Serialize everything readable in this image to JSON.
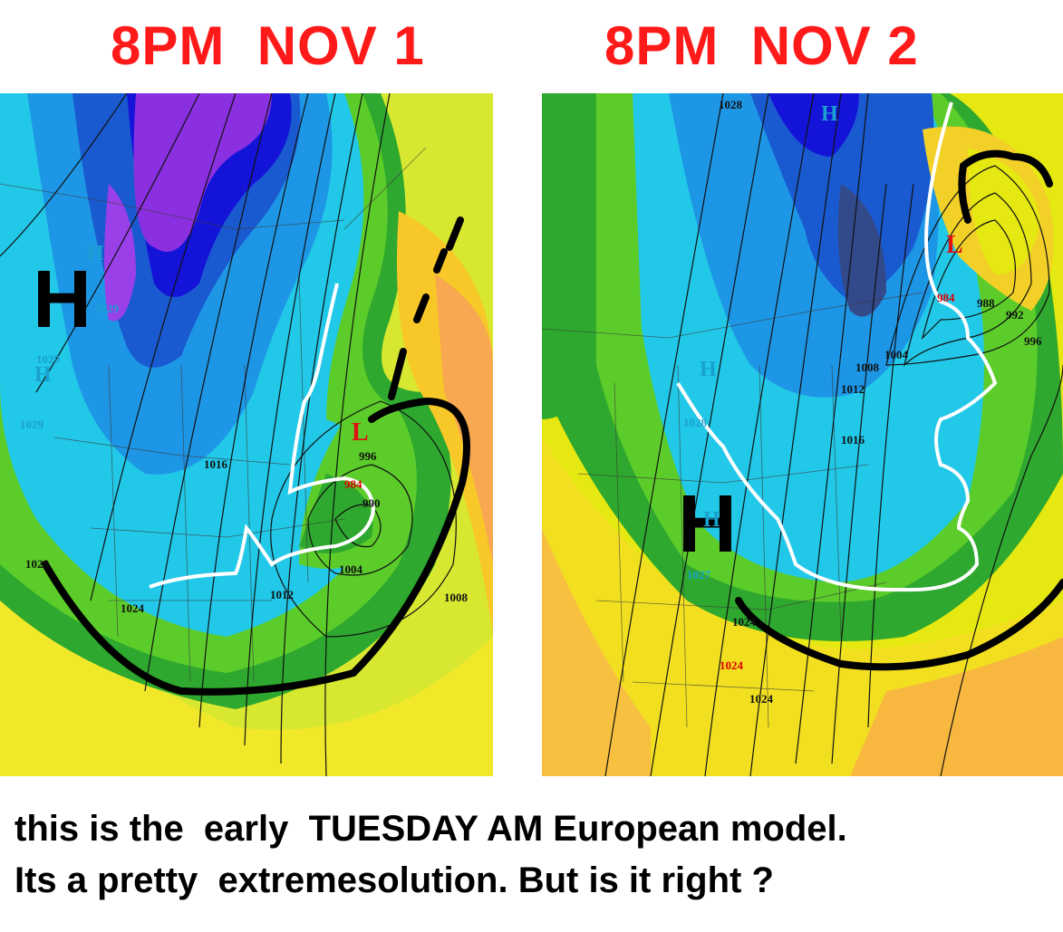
{
  "panels": [
    {
      "title": "8PM  NOV 1",
      "big_high": "H",
      "highs": [
        "H",
        "H"
      ],
      "low": "L",
      "high_pressure_labels": [
        "1029",
        "1029",
        "1029"
      ],
      "isobar_labels": [
        "1016",
        "1024",
        "1028",
        "1012",
        "1004",
        "1008",
        "996",
        "990",
        "984"
      ]
    },
    {
      "title": "8PM  NOV 2",
      "big_high": "H",
      "highs": [
        "H",
        "H",
        "H"
      ],
      "low": "L",
      "high_pressure_labels": [
        "1028",
        "1027"
      ],
      "isobar_labels": [
        "1028",
        "984",
        "988",
        "992",
        "996",
        "1004",
        "1008",
        "1012",
        "1016",
        "1024",
        "1024",
        "1024"
      ]
    }
  ],
  "caption": {
    "line1": "this is the  early  TUESDAY AM European model.",
    "line2": "Its a pretty  extremesolution. But is it right ?"
  },
  "colors": {
    "title": "#ff1a1a",
    "low": "#e01010",
    "high": "#1aa0d0",
    "rain_snow_line": "#ffffff",
    "front": "#000000"
  }
}
